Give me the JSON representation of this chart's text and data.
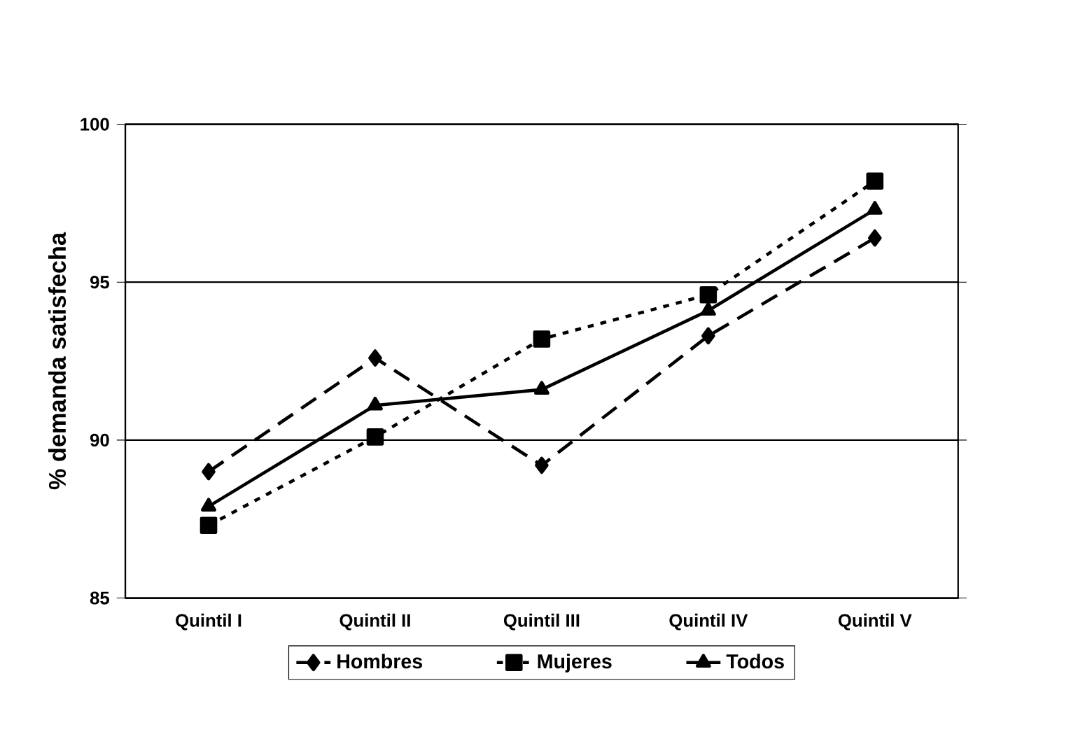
{
  "chart_data": {
    "type": "line",
    "ylabel": "% demanda satisfecha",
    "categories": [
      "Quintil I",
      "Quintil II",
      "Quintil III",
      "Quintil IV",
      "Quintil V"
    ],
    "series": [
      {
        "name": "Hombres",
        "color": "#000000",
        "marker": "diamond",
        "line_style": "dashed",
        "values": [
          89.0,
          92.6,
          89.2,
          93.3,
          96.4
        ]
      },
      {
        "name": "Mujeres",
        "color": "#000000",
        "marker": "square",
        "line_style": "dotted",
        "values": [
          87.3,
          90.1,
          93.2,
          94.6,
          98.2
        ]
      },
      {
        "name": "Todos",
        "color": "#000000",
        "marker": "triangle",
        "line_style": "solid",
        "values": [
          87.9,
          91.1,
          91.6,
          94.1,
          97.3
        ]
      }
    ],
    "ylim": [
      85,
      100
    ],
    "yticks": [
      85,
      90,
      95,
      100
    ],
    "grid": "y",
    "legend": "bottom"
  }
}
